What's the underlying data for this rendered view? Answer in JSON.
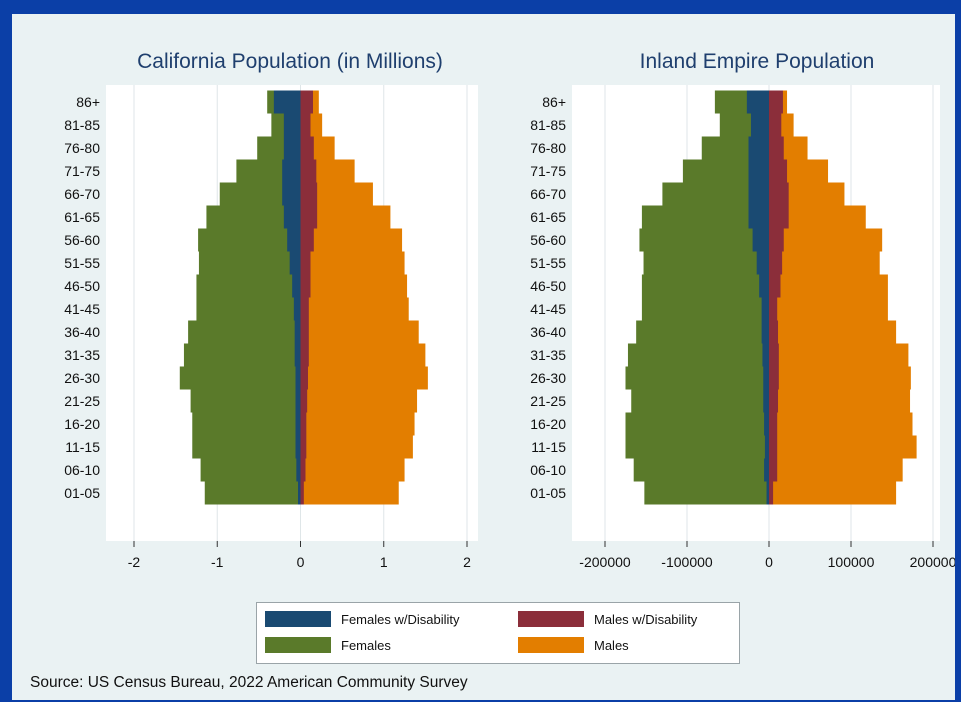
{
  "colors": {
    "females_dis": "#1a4a72",
    "males_dis": "#8b2e3a",
    "females": "#5a7a2a",
    "males": "#e37e00",
    "frame": "#0b3fa7",
    "panel_bg": "#eaf2f3"
  },
  "legend": {
    "females_dis": "Females w/Disability",
    "males_dis": "Males w/Disability",
    "females": "Females",
    "males": "Males"
  },
  "source": "Source: US Census Bureau, 2022 American Community Survey",
  "chart_data": [
    {
      "type": "bar",
      "orientation": "horizontal",
      "title": "California Population (in Millions)",
      "categories": [
        "01-05",
        "06-10",
        "11-15",
        "16-20",
        "21-25",
        "26-30",
        "31-35",
        "36-40",
        "41-45",
        "46-50",
        "51-55",
        "56-60",
        "61-65",
        "66-70",
        "71-75",
        "76-80",
        "81-85",
        "86+"
      ],
      "xlim": [
        -2,
        2
      ],
      "xticks": [
        -2,
        -1,
        0,
        1,
        2
      ],
      "tick_labels": [
        "-2",
        "-1",
        "0",
        "1",
        "2"
      ],
      "grid": true,
      "series": [
        {
          "name": "Females",
          "values": [
            -1.15,
            -1.2,
            -1.3,
            -1.3,
            -1.32,
            -1.45,
            -1.4,
            -1.35,
            -1.25,
            -1.25,
            -1.22,
            -1.23,
            -1.13,
            -0.97,
            -0.77,
            -0.52,
            -0.35,
            -0.4
          ]
        },
        {
          "name": "Males",
          "values": [
            1.18,
            1.25,
            1.35,
            1.37,
            1.4,
            1.53,
            1.5,
            1.42,
            1.3,
            1.28,
            1.25,
            1.22,
            1.08,
            0.87,
            0.65,
            0.41,
            0.26,
            0.22
          ]
        },
        {
          "name": "Females w/Disability",
          "values": [
            -0.03,
            -0.05,
            -0.06,
            -0.06,
            -0.06,
            -0.06,
            -0.07,
            -0.07,
            -0.08,
            -0.1,
            -0.13,
            -0.16,
            -0.2,
            -0.22,
            -0.22,
            -0.2,
            -0.2,
            -0.32
          ]
        },
        {
          "name": "Males w/Disability",
          "values": [
            0.04,
            0.06,
            0.07,
            0.07,
            0.08,
            0.09,
            0.1,
            0.1,
            0.1,
            0.12,
            0.12,
            0.16,
            0.2,
            0.2,
            0.19,
            0.16,
            0.12,
            0.15
          ]
        }
      ]
    },
    {
      "type": "bar",
      "orientation": "horizontal",
      "title": "Inland Empire Population",
      "categories": [
        "01-05",
        "06-10",
        "11-15",
        "16-20",
        "21-25",
        "26-30",
        "31-35",
        "36-40",
        "41-45",
        "46-50",
        "51-55",
        "56-60",
        "61-65",
        "66-70",
        "71-75",
        "76-80",
        "81-85",
        "86+"
      ],
      "xlim": [
        -200000,
        200000
      ],
      "xticks": [
        -200000,
        -100000,
        0,
        100000,
        200000
      ],
      "tick_labels": [
        "-200000",
        "-100000",
        "0",
        "100000",
        "200000"
      ],
      "grid": true,
      "series": [
        {
          "name": "Females",
          "values": [
            -152000,
            -165000,
            -175000,
            -175000,
            -168000,
            -175000,
            -172000,
            -162000,
            -155000,
            -155000,
            -153000,
            -158000,
            -155000,
            -130000,
            -105000,
            -82000,
            -60000,
            -66000
          ]
        },
        {
          "name": "Males",
          "values": [
            155000,
            163000,
            180000,
            175000,
            172000,
            173000,
            170000,
            155000,
            145000,
            145000,
            135000,
            138000,
            118000,
            92000,
            72000,
            47000,
            30000,
            22000
          ]
        },
        {
          "name": "Females w/Disability",
          "values": [
            -3000,
            -6000,
            -5000,
            -6000,
            -7000,
            -7000,
            -8000,
            -9000,
            -9000,
            -12000,
            -15000,
            -20000,
            -25000,
            -25000,
            -25000,
            -25000,
            -22000,
            -27000
          ]
        },
        {
          "name": "Males w/Disability",
          "values": [
            5000,
            10000,
            10000,
            10000,
            11000,
            12000,
            12000,
            11000,
            10000,
            14000,
            16000,
            18000,
            24000,
            24000,
            22000,
            18000,
            15000,
            17000
          ]
        }
      ]
    }
  ]
}
